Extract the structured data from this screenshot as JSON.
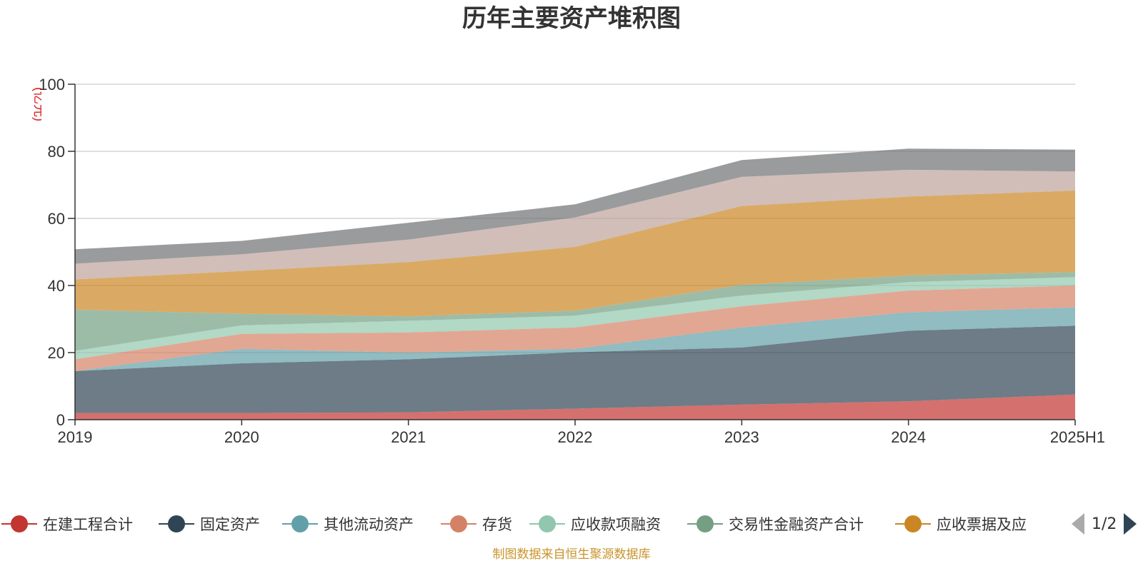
{
  "chart_data": {
    "type": "area",
    "stacked": true,
    "title": "历年主要资产堆积图",
    "unit_label": "(亿元)",
    "x": [
      "2019",
      "2020",
      "2021",
      "2022",
      "2023",
      "2024",
      "2025H1"
    ],
    "ylim": [
      0,
      100
    ],
    "yticks": [
      0,
      20,
      40,
      60,
      80,
      100
    ],
    "grid": true,
    "legend_position": "bottom",
    "series": [
      {
        "name": "在建工程合计",
        "color": "#c23531",
        "values": [
          2.0,
          2.0,
          2.2,
          3.3,
          4.5,
          5.5,
          7.5
        ]
      },
      {
        "name": "固定资产",
        "color": "#2f4554",
        "values": [
          12.5,
          14.8,
          15.8,
          16.8,
          17.0,
          21.0,
          20.5
        ]
      },
      {
        "name": "其他流动资产",
        "color": "#61a0a8",
        "values": [
          0.0,
          4.3,
          2.0,
          1.0,
          6.0,
          5.5,
          5.5
        ]
      },
      {
        "name": "存货",
        "color": "#d48265",
        "values": [
          3.5,
          4.5,
          6.0,
          6.4,
          6.3,
          6.5,
          6.5
        ]
      },
      {
        "name": "应收款项融资",
        "color": "#91c7ae",
        "values": [
          2.5,
          2.5,
          3.5,
          3.5,
          3.2,
          2.5,
          2.5
        ]
      },
      {
        "name": "交易性金融资产合计",
        "color": "#749f83",
        "values": [
          12.3,
          3.5,
          1.3,
          1.5,
          3.2,
          2.0,
          1.5
        ]
      },
      {
        "name": "应收票据及应收账款",
        "color": "#ca8622",
        "values": [
          9.0,
          12.7,
          16.2,
          19.0,
          23.5,
          23.5,
          24.3
        ]
      },
      {
        "name": "",
        "color": "#bda29a",
        "values": [
          4.7,
          5.0,
          6.7,
          8.8,
          8.7,
          8.0,
          5.7
        ]
      },
      {
        "name": "",
        "color": "#6e7074",
        "values": [
          4.3,
          4.0,
          5.0,
          3.9,
          5.0,
          6.3,
          6.5
        ]
      }
    ]
  },
  "legend": {
    "items": [
      {
        "label": "在建工程合计",
        "color": "#c23531"
      },
      {
        "label": "固定资产",
        "color": "#2f4554"
      },
      {
        "label": "其他流动资产",
        "color": "#61a0a8"
      },
      {
        "label": "存货",
        "color": "#d48265"
      },
      {
        "label": "应收款项融资",
        "color": "#91c7ae"
      },
      {
        "label": "交易性金融资产合计",
        "color": "#749f83"
      },
      {
        "label": "应收票据及应",
        "color": "#ca8622"
      }
    ],
    "page": "1/2"
  },
  "source_note": "制图数据来自恒生聚源数据库"
}
